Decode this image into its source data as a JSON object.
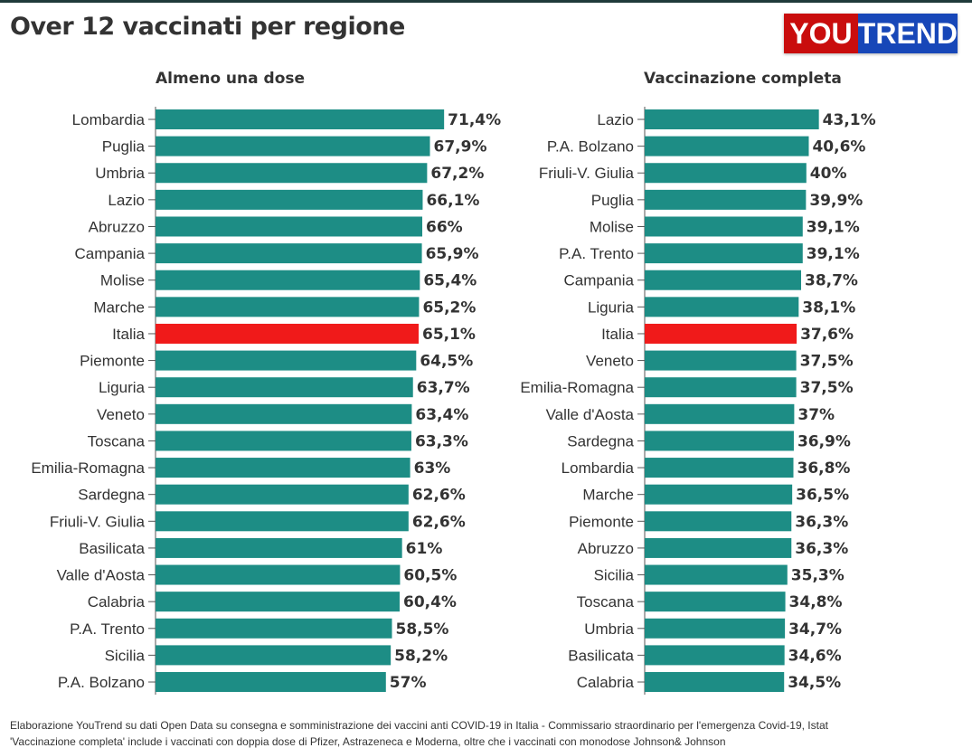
{
  "header": {
    "title": "Over 12 vaccinati per regione",
    "logo_left": "YOU",
    "logo_right": "TREND"
  },
  "colors": {
    "bar": "#1d8d85",
    "highlight": "#f01a1a"
  },
  "chart_data": [
    {
      "type": "bar",
      "orientation": "horizontal",
      "title": "Almeno una dose",
      "unit": "%",
      "xlim": [
        0,
        100
      ],
      "categories": [
        "Lombardia",
        "Puglia",
        "Umbria",
        "Lazio",
        "Abruzzo",
        "Campania",
        "Molise",
        "Marche",
        "Italia",
        "Piemonte",
        "Liguria",
        "Veneto",
        "Toscana",
        "Emilia-Romagna",
        "Sardegna",
        "Friuli-V. Giulia",
        "Basilicata",
        "Valle d'Aosta",
        "Calabria",
        "P.A. Trento",
        "Sicilia",
        "P.A. Bolzano"
      ],
      "values": [
        71.4,
        67.9,
        67.2,
        66.1,
        66,
        65.9,
        65.4,
        65.2,
        65.1,
        64.5,
        63.7,
        63.4,
        63.3,
        63,
        62.6,
        62.6,
        61,
        60.5,
        60.4,
        58.5,
        58.2,
        57
      ],
      "labels": [
        "71,4%",
        "67,9%",
        "67,2%",
        "66,1%",
        "66%",
        "65,9%",
        "65,4%",
        "65,2%",
        "65,1%",
        "64,5%",
        "63,7%",
        "63,4%",
        "63,3%",
        "63%",
        "62,6%",
        "62,6%",
        "61%",
        "60,5%",
        "60,4%",
        "58,5%",
        "58,2%",
        "57%"
      ],
      "highlight": "Italia"
    },
    {
      "type": "bar",
      "orientation": "horizontal",
      "title": "Vaccinazione completa",
      "unit": "%",
      "xlim": [
        0,
        100
      ],
      "categories": [
        "Lazio",
        "P.A. Bolzano",
        "Friuli-V. Giulia",
        "Puglia",
        "Molise",
        "P.A. Trento",
        "Campania",
        "Liguria",
        "Italia",
        "Veneto",
        "Emilia-Romagna",
        "Valle d'Aosta",
        "Sardegna",
        "Lombardia",
        "Marche",
        "Piemonte",
        "Abruzzo",
        "Sicilia",
        "Toscana",
        "Umbria",
        "Basilicata",
        "Calabria"
      ],
      "values": [
        43.1,
        40.6,
        40,
        39.9,
        39.1,
        39.1,
        38.7,
        38.1,
        37.6,
        37.5,
        37.5,
        37,
        36.9,
        36.8,
        36.5,
        36.3,
        36.3,
        35.3,
        34.8,
        34.7,
        34.6,
        34.5
      ],
      "labels": [
        "43,1%",
        "40,6%",
        "40%",
        "39,9%",
        "39,1%",
        "39,1%",
        "38,7%",
        "38,1%",
        "37,6%",
        "37,5%",
        "37,5%",
        "37%",
        "36,9%",
        "36,8%",
        "36,5%",
        "36,3%",
        "36,3%",
        "35,3%",
        "34,8%",
        "34,7%",
        "34,6%",
        "34,5%"
      ],
      "highlight": "Italia"
    }
  ],
  "footer": {
    "line1": "Elaborazione YouTrend su dati Open Data su consegna e somministrazione dei vaccini anti COVID-19 in Italia - Commissario straordinario per l'emergenza Covid-19, Istat",
    "line2": "'Vaccinazione completa' include i vaccinati con doppia dose di Pfizer, Astrazeneca e Moderna, oltre che i vaccinati con monodose Johnson& Johnson"
  }
}
